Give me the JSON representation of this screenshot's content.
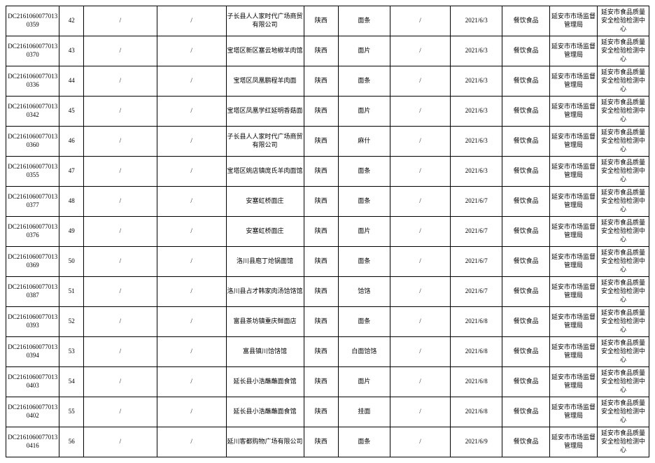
{
  "table": {
    "rows": [
      {
        "id": "DC21610600770130359",
        "num": "42",
        "c3": "/",
        "c4": "/",
        "unit": "子长县人人家时代广场商贸有限公司",
        "prov": "陕西",
        "item": "面条",
        "spec": "/",
        "date": "2021/6/3",
        "cat": "餐饮食品",
        "agency": "延安市市场监督管理局",
        "lab": "延安市食品质量安全检验检测中心"
      },
      {
        "id": "DC21610600770130370",
        "num": "43",
        "c3": "/",
        "c4": "/",
        "unit": "宝塔区新区塞云地椒羊肉馆",
        "prov": "陕西",
        "item": "面片",
        "spec": "/",
        "date": "2021/6/3",
        "cat": "餐饮食品",
        "agency": "延安市市场监督管理局",
        "lab": "延安市食品质量安全检验检测中心"
      },
      {
        "id": "DC21610600770130336",
        "num": "44",
        "c3": "/",
        "c4": "/",
        "unit": "宝塔区凤凰鹏程羊肉面",
        "prov": "陕西",
        "item": "面条",
        "spec": "/",
        "date": "2021/6/3",
        "cat": "餐饮食品",
        "agency": "延安市市场监督管理局",
        "lab": "延安市食品质量安全检验检测中心"
      },
      {
        "id": "DC21610600770130342",
        "num": "45",
        "c3": "/",
        "c4": "/",
        "unit": "宝塔区凤凰学红延明香菇面",
        "prov": "陕西",
        "item": "面片",
        "spec": "/",
        "date": "2021/6/3",
        "cat": "餐饮食品",
        "agency": "延安市市场监督管理局",
        "lab": "延安市食品质量安全检验检测中心"
      },
      {
        "id": "DC21610600770130360",
        "num": "46",
        "c3": "/",
        "c4": "/",
        "unit": "子长县人人家时代广场商贸有限公司",
        "prov": "陕西",
        "item": "麻什",
        "spec": "/",
        "date": "2021/6/3",
        "cat": "餐饮食品",
        "agency": "延安市市场监督管理局",
        "lab": "延安市食品质量安全检验检测中心"
      },
      {
        "id": "DC21610600770130355",
        "num": "47",
        "c3": "/",
        "c4": "/",
        "unit": "宝塔区姚店镇庞氏羊肉面馆",
        "prov": "陕西",
        "item": "面条",
        "spec": "/",
        "date": "2021/6/3",
        "cat": "餐饮食品",
        "agency": "延安市市场监督管理局",
        "lab": "延安市食品质量安全检验检测中心"
      },
      {
        "id": "DC21610600770130377",
        "num": "48",
        "c3": "/",
        "c4": "/",
        "unit": "安塞虹桥面庄",
        "prov": "陕西",
        "item": "面条",
        "spec": "/",
        "date": "2021/6/7",
        "cat": "餐饮食品",
        "agency": "延安市市场监督管理局",
        "lab": "延安市食品质量安全检验检测中心"
      },
      {
        "id": "DC21610600770130376",
        "num": "49",
        "c3": "/",
        "c4": "/",
        "unit": "安塞虹桥面庄",
        "prov": "陕西",
        "item": "面片",
        "spec": "/",
        "date": "2021/6/7",
        "cat": "餐饮食品",
        "agency": "延安市市场监督管理局",
        "lab": "延安市食品质量安全检验检测中心"
      },
      {
        "id": "DC21610600770130369",
        "num": "50",
        "c3": "/",
        "c4": "/",
        "unit": "洛川县庖丁炝锅面馆",
        "prov": "陕西",
        "item": "面条",
        "spec": "/",
        "date": "2021/6/7",
        "cat": "餐饮食品",
        "agency": "延安市市场监督管理局",
        "lab": "延安市食品质量安全检验检测中心"
      },
      {
        "id": "DC21610600770130387",
        "num": "51",
        "c3": "/",
        "c4": "/",
        "unit": "洛川县占才韩家肉汤饸饹馆",
        "prov": "陕西",
        "item": "饸饹",
        "spec": "/",
        "date": "2021/6/7",
        "cat": "餐饮食品",
        "agency": "延安市市场监督管理局",
        "lab": "延安市食品质量安全检验检测中心"
      },
      {
        "id": "DC21610600770130393",
        "num": "52",
        "c3": "/",
        "c4": "/",
        "unit": "富县茶坊镇重庆鲜面店",
        "prov": "陕西",
        "item": "面条",
        "spec": "/",
        "date": "2021/6/8",
        "cat": "餐饮食品",
        "agency": "延安市市场监督管理局",
        "lab": "延安市食品质量安全检验检测中心"
      },
      {
        "id": "DC21610600770130394",
        "num": "53",
        "c3": "/",
        "c4": "/",
        "unit": "富县镇川饸饹馆",
        "prov": "陕西",
        "item": "白面饸饹",
        "spec": "/",
        "date": "2021/6/8",
        "cat": "餐饮食品",
        "agency": "延安市市场监督管理局",
        "lab": "延安市食品质量安全检验检测中心"
      },
      {
        "id": "DC21610600770130403",
        "num": "54",
        "c3": "/",
        "c4": "/",
        "unit": "延长县小浩蘸蘸面食馆",
        "prov": "陕西",
        "item": "面片",
        "spec": "/",
        "date": "2021/6/8",
        "cat": "餐饮食品",
        "agency": "延安市市场监督管理局",
        "lab": "延安市食品质量安全检验检测中心"
      },
      {
        "id": "DC21610600770130402",
        "num": "55",
        "c3": "/",
        "c4": "/",
        "unit": "延长县小浩蘸蘸面食馆",
        "prov": "陕西",
        "item": "挂面",
        "spec": "/",
        "date": "2021/6/8",
        "cat": "餐饮食品",
        "agency": "延安市市场监督管理局",
        "lab": "延安市食品质量安全检验检测中心"
      },
      {
        "id": "DC21610600770130416",
        "num": "56",
        "c3": "/",
        "c4": "/",
        "unit": "延川客都购物广场有限公司",
        "prov": "陕西",
        "item": "面条",
        "spec": "/",
        "date": "2021/6/9",
        "cat": "餐饮食品",
        "agency": "延安市市场监督管理局",
        "lab": "延安市食品质量安全检验检测中心"
      }
    ]
  }
}
